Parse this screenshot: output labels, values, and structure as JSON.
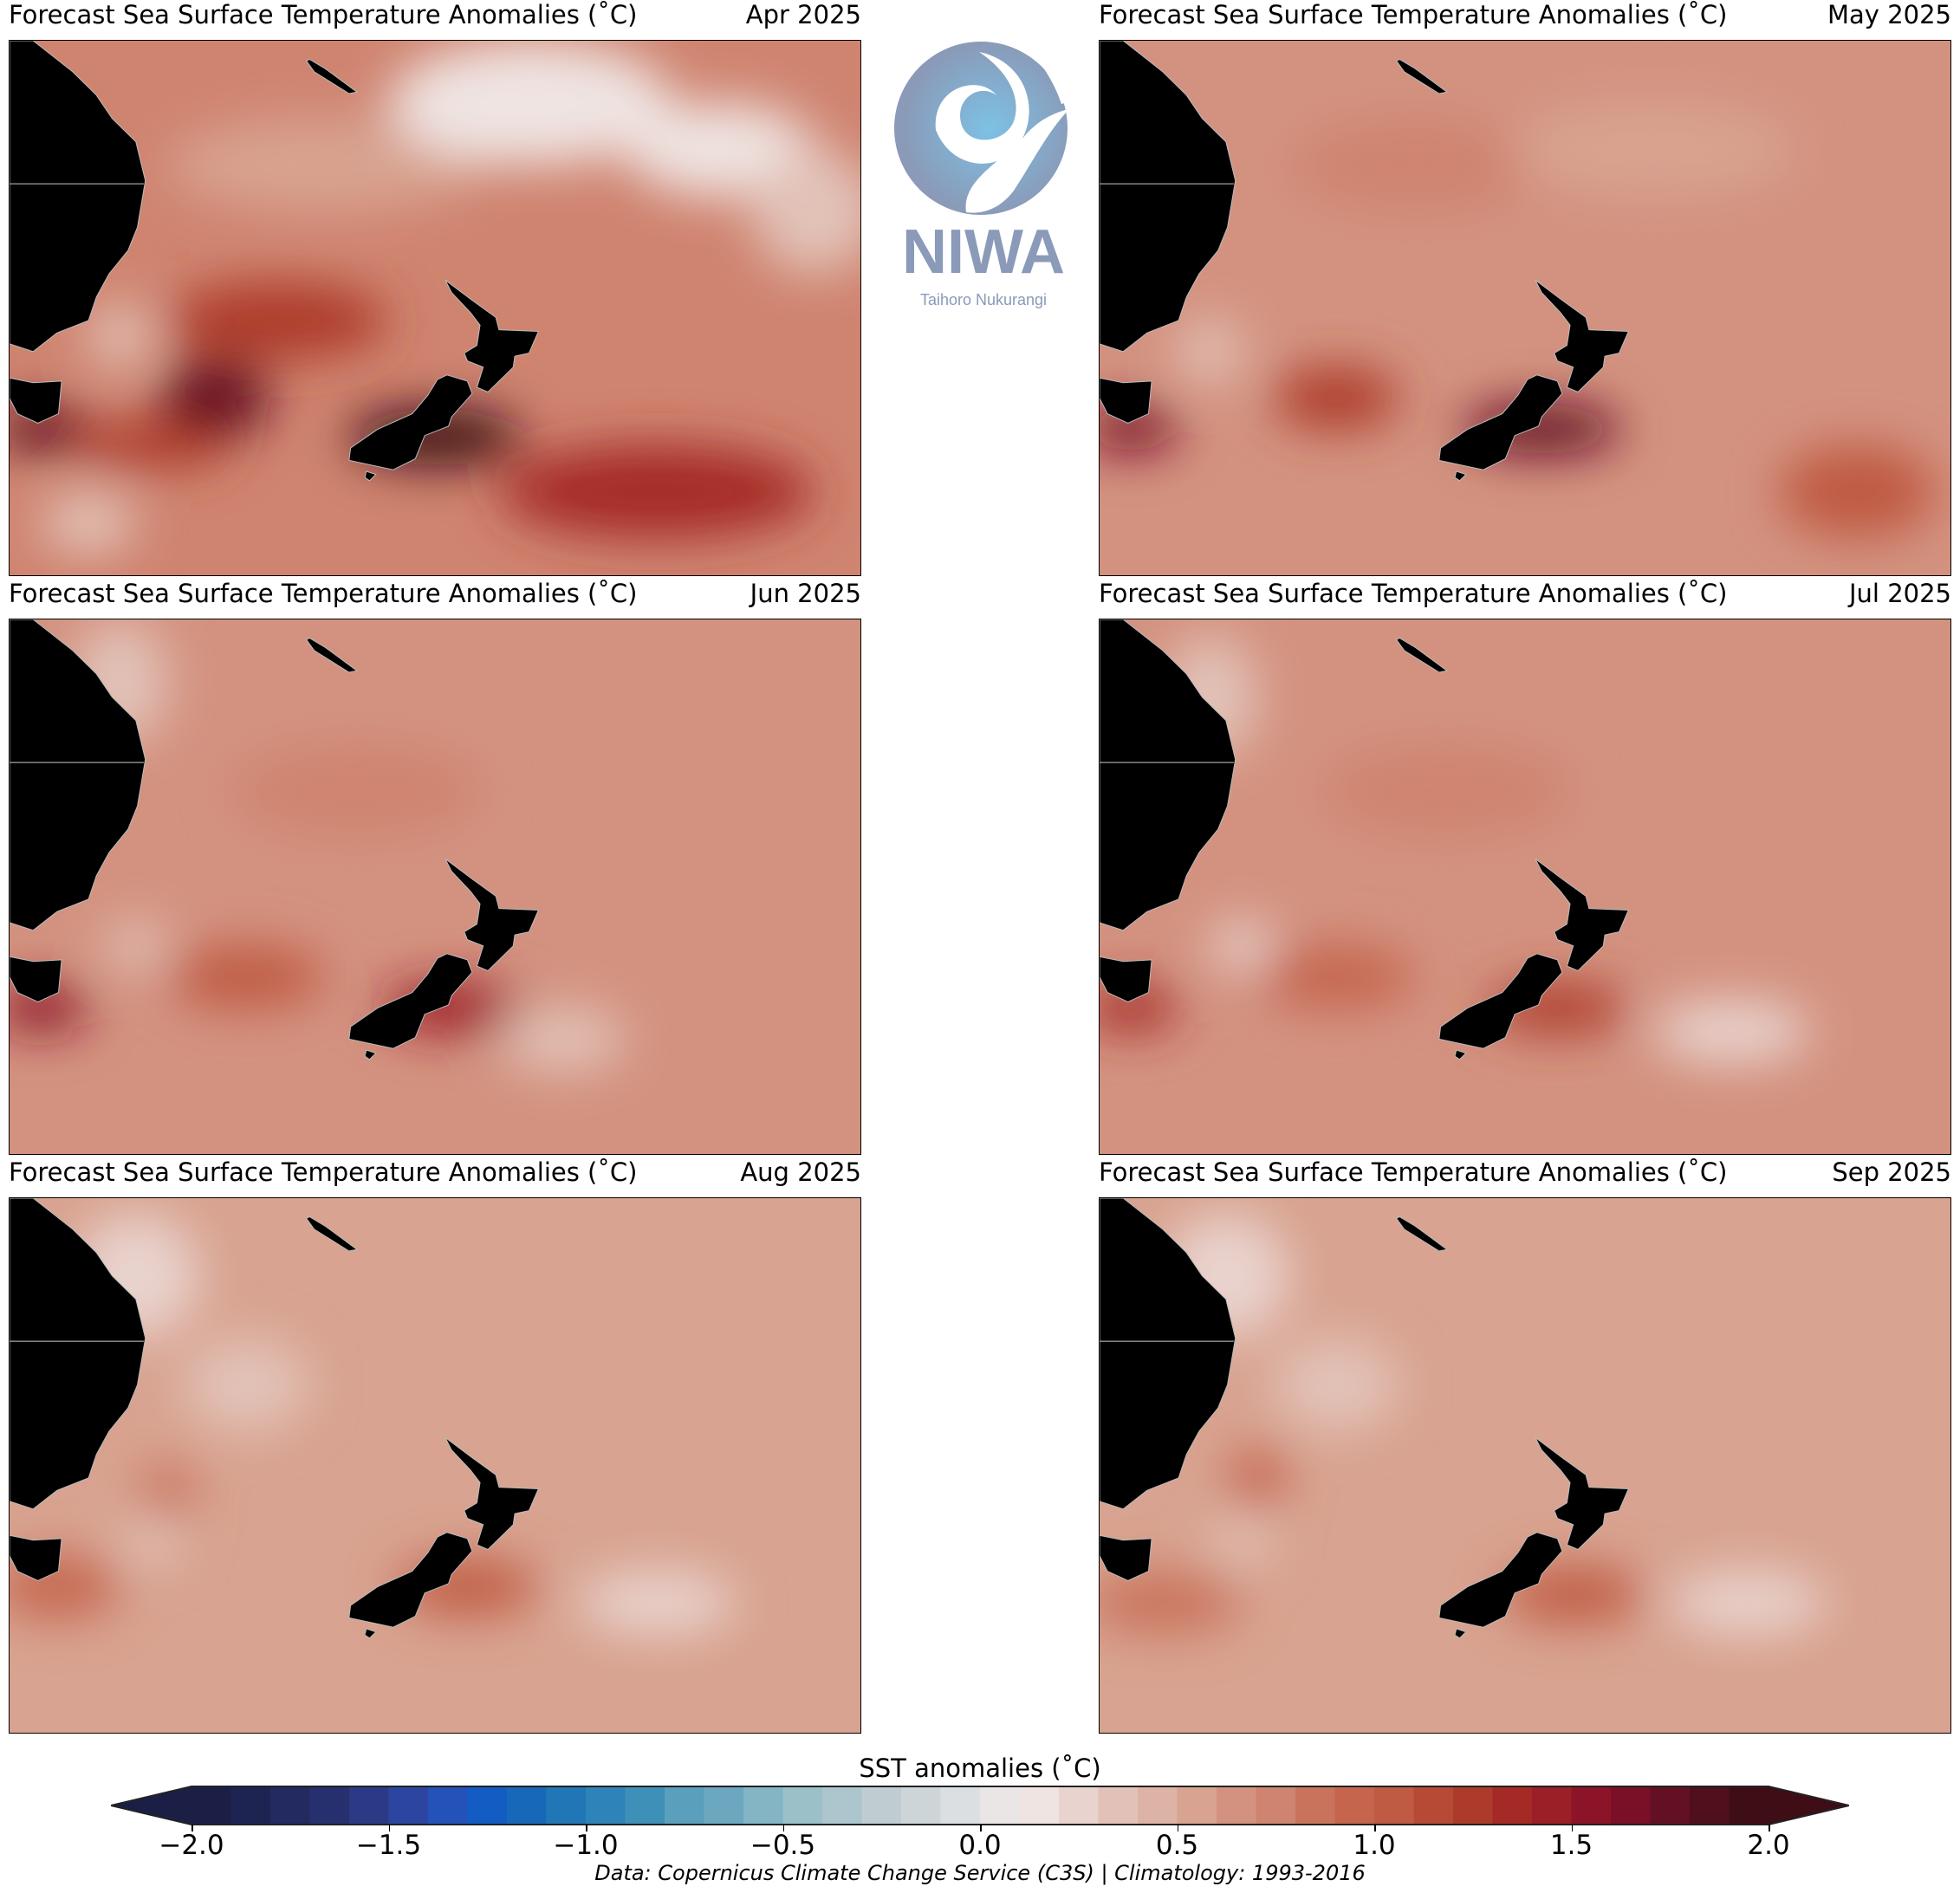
{
  "chart_data": {
    "type": "heatmap",
    "map_extent_deg": {
      "lon": [
        145,
        199
      ],
      "lat": [
        -53.5,
        -19
      ]
    },
    "panels": [
      {
        "title": "Forecast Sea Surface Temperature Anomalies (˚C)",
        "month": "Apr 2025",
        "base": 0.75,
        "features": [
          {
            "lon": 165,
            "lat": -27,
            "value": 0.55,
            "rlon": 10,
            "rlat": 3
          },
          {
            "lon": 178,
            "lat": -23,
            "value": 0.15,
            "rlon": 9,
            "rlat": 4
          },
          {
            "lon": 190,
            "lat": -26,
            "value": 0.15,
            "rlon": 6,
            "rlat": 3
          },
          {
            "lon": 196,
            "lat": -30,
            "value": 0.35,
            "rlon": 4,
            "rlat": 4
          },
          {
            "lon": 152,
            "lat": -38,
            "value": 0.35,
            "rlon": 2,
            "rlat": 2
          },
          {
            "lon": 150,
            "lat": -50,
            "value": 0.35,
            "rlon": 3,
            "rlat": 2
          },
          {
            "lon": 162,
            "lat": -37,
            "value": 1.2,
            "rlon": 7,
            "rlat": 2.5
          },
          {
            "lon": 158,
            "lat": -42,
            "value": 1.7,
            "rlon": 3.5,
            "rlat": 2.5
          },
          {
            "lon": 147,
            "lat": -44,
            "value": 1.7,
            "rlon": 3,
            "rlat": 1.5
          },
          {
            "lon": 154,
            "lat": -45,
            "value": 1.3,
            "rlon": 5,
            "rlat": 1.5
          },
          {
            "lon": 186,
            "lat": -48,
            "value": 1.35,
            "rlon": 10,
            "rlat": 3
          },
          {
            "lon": 172,
            "lat": -44.5,
            "value": 1.95,
            "rlon": 5.5,
            "rlat": 1.8
          }
        ]
      },
      {
        "title": "Forecast Sea Surface Temperature Anomalies (˚C)",
        "month": "May 2025",
        "base": 0.65,
        "features": [
          {
            "lon": 165,
            "lat": -27,
            "value": 0.8,
            "rlon": 8,
            "rlat": 3
          },
          {
            "lon": 180,
            "lat": -26,
            "value": 0.5,
            "rlon": 9,
            "rlat": 3
          },
          {
            "lon": 152,
            "lat": -39,
            "value": 0.4,
            "rlon": 2,
            "rlat": 2
          },
          {
            "lon": 160,
            "lat": -42,
            "value": 1.2,
            "rlon": 4,
            "rlat": 2
          },
          {
            "lon": 147,
            "lat": -44,
            "value": 1.6,
            "rlon": 3,
            "rlat": 1.5
          },
          {
            "lon": 193,
            "lat": -48,
            "value": 1.0,
            "rlon": 5,
            "rlat": 3
          },
          {
            "lon": 173,
            "lat": -44,
            "value": 1.7,
            "rlon": 5,
            "rlat": 1.6
          }
        ]
      },
      {
        "title": "Forecast Sea Surface Temperature Anomalies (˚C)",
        "month": "Jun 2025",
        "base": 0.6,
        "features": [
          {
            "lon": 152,
            "lat": -23,
            "value": 0.35,
            "rlon": 3,
            "rlat": 4
          },
          {
            "lon": 167,
            "lat": -30,
            "value": 0.75,
            "rlon": 8,
            "rlat": 3
          },
          {
            "lon": 153,
            "lat": -40,
            "value": 0.35,
            "rlon": 2,
            "rlat": 1.5
          },
          {
            "lon": 180,
            "lat": -46,
            "value": 0.4,
            "rlon": 4,
            "rlat": 2
          },
          {
            "lon": 160,
            "lat": -42,
            "value": 1.0,
            "rlon": 5,
            "rlat": 2
          },
          {
            "lon": 147,
            "lat": -44,
            "value": 1.5,
            "rlon": 3,
            "rlat": 1.5
          },
          {
            "lon": 173,
            "lat": -44,
            "value": 1.45,
            "rlon": 4.5,
            "rlat": 1.6
          }
        ]
      },
      {
        "title": "Forecast Sea Surface Temperature Anomalies (˚C)",
        "month": "Jul 2025",
        "base": 0.6,
        "features": [
          {
            "lon": 152,
            "lat": -24,
            "value": 0.35,
            "rlon": 3,
            "rlat": 4
          },
          {
            "lon": 167,
            "lat": -30,
            "value": 0.7,
            "rlon": 8,
            "rlat": 3
          },
          {
            "lon": 154,
            "lat": -40,
            "value": 0.3,
            "rlon": 2,
            "rlat": 1.5
          },
          {
            "lon": 185,
            "lat": -45.5,
            "value": 0.25,
            "rlon": 5,
            "rlat": 2
          },
          {
            "lon": 160,
            "lat": -42,
            "value": 0.95,
            "rlon": 5,
            "rlat": 2
          },
          {
            "lon": 147,
            "lat": -44,
            "value": 1.35,
            "rlon": 3,
            "rlat": 1.5
          },
          {
            "lon": 174,
            "lat": -44,
            "value": 1.3,
            "rlon": 4.5,
            "rlat": 1.6
          }
        ]
      },
      {
        "title": "Forecast Sea Surface Temperature Anomalies (˚C)",
        "month": "Aug 2025",
        "base": 0.55,
        "features": [
          {
            "lon": 153,
            "lat": -24,
            "value": 0.3,
            "rlon": 4,
            "rlat": 4
          },
          {
            "lon": 160,
            "lat": -31,
            "value": 0.35,
            "rlon": 4,
            "rlat": 3
          },
          {
            "lon": 155,
            "lat": -38,
            "value": 0.9,
            "rlon": 1.8,
            "rlat": 2
          },
          {
            "lon": 154,
            "lat": -41,
            "value": 0.35,
            "rlon": 2,
            "rlat": 1.5
          },
          {
            "lon": 186,
            "lat": -45,
            "value": 0.2,
            "rlon": 5,
            "rlat": 2
          },
          {
            "lon": 148,
            "lat": -44,
            "value": 0.95,
            "rlon": 4,
            "rlat": 2
          },
          {
            "lon": 174,
            "lat": -44,
            "value": 1.0,
            "rlon": 4.5,
            "rlat": 1.8
          }
        ]
      },
      {
        "title": "Forecast Sea Surface Temperature Anomalies (˚C)",
        "month": "Sep 2025",
        "base": 0.55,
        "features": [
          {
            "lon": 153,
            "lat": -24,
            "value": 0.3,
            "rlon": 4,
            "rlat": 4
          },
          {
            "lon": 160,
            "lat": -31,
            "value": 0.35,
            "rlon": 4,
            "rlat": 3
          },
          {
            "lon": 155,
            "lat": -37,
            "value": 0.95,
            "rlon": 1.8,
            "rlat": 2
          },
          {
            "lon": 154,
            "lat": -41,
            "value": 0.35,
            "rlon": 2,
            "rlat": 1.5
          },
          {
            "lon": 186,
            "lat": -45,
            "value": 0.2,
            "rlon": 5,
            "rlat": 2
          },
          {
            "lon": 149,
            "lat": -45,
            "value": 0.85,
            "rlon": 5,
            "rlat": 2
          },
          {
            "lon": 175,
            "lat": -44.5,
            "value": 1.0,
            "rlon": 4.5,
            "rlat": 1.8
          }
        ]
      }
    ],
    "colorbar": {
      "label": "SST anomalies (˚C)",
      "range": [
        -2.0,
        2.0
      ],
      "step": 0.1,
      "extend": "both",
      "ticks": [
        "−2.0",
        "−1.5",
        "−1.0",
        "−0.5",
        "0.0",
        "0.5",
        "1.0",
        "1.5",
        "2.0"
      ],
      "colors": [
        "#1b1f45",
        "#1e2452",
        "#222a60",
        "#27306f",
        "#2b3a85",
        "#2c45a0",
        "#2352b8",
        "#125cc4",
        "#1768b8",
        "#2177b5",
        "#2e84b8",
        "#3f90b8",
        "#5a9fbb",
        "#6ba8bf",
        "#83b5c4",
        "#9bc0c8",
        "#adc5cc",
        "#bfcdd2",
        "#ced5d9",
        "#dcdfe1",
        "#ebe6e6",
        "#efe4e2",
        "#e9d3ce",
        "#e2c2b8",
        "#ddb3a5",
        "#d8a390",
        "#d39280",
        "#cf8470",
        "#c9735c",
        "#c5654e",
        "#bf5a43",
        "#b74a35",
        "#ad3b2b",
        "#a52a26",
        "#9b1f27",
        "#8c1428",
        "#7a1028",
        "#631023",
        "#4f0f1c",
        "#3e0d15"
      ]
    }
  },
  "logo": {
    "name": "NIWA",
    "tagline": "Taihoro Nukurangi",
    "color": "#8a9ab8"
  },
  "footer": "Data: Copernicus Climate Change Service (C3S) | Climatology: 1993-2016"
}
